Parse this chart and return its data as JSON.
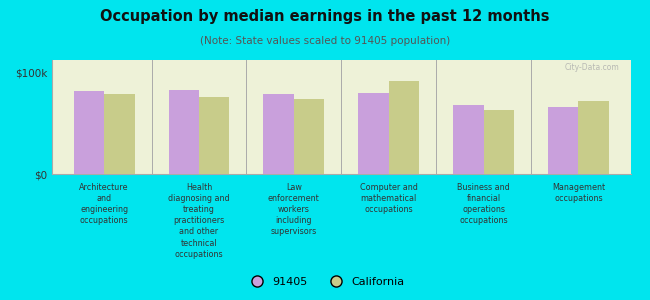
{
  "title": "Occupation by median earnings in the past 12 months",
  "subtitle": "(Note: State values scaled to 91405 population)",
  "categories": [
    "Architecture\nand\nengineering\noccupations",
    "Health\ndiagnosing and\ntreating\npractitioners\nand other\ntechnical\noccupations",
    "Law\nenforcement\nworkers\nincluding\nsupervisors",
    "Computer and\nmathematical\noccupations",
    "Business and\nfinancial\noperations\noccupations",
    "Management\noccupations"
  ],
  "values_91405": [
    82000,
    83000,
    79000,
    80000,
    68000,
    66000
  ],
  "values_california": [
    79000,
    76000,
    74000,
    91000,
    63000,
    72000
  ],
  "color_91405": "#c9a0dc",
  "color_california": "#c8cc8a",
  "background_chart": "#eef2d8",
  "background_fig": "#00e5ee",
  "ytick_label_100k": "$100k",
  "ytick_label_0": "$0",
  "ylim": [
    0,
    112000
  ],
  "legend_91405": "91405",
  "legend_california": "California",
  "watermark": "City-Data.com"
}
